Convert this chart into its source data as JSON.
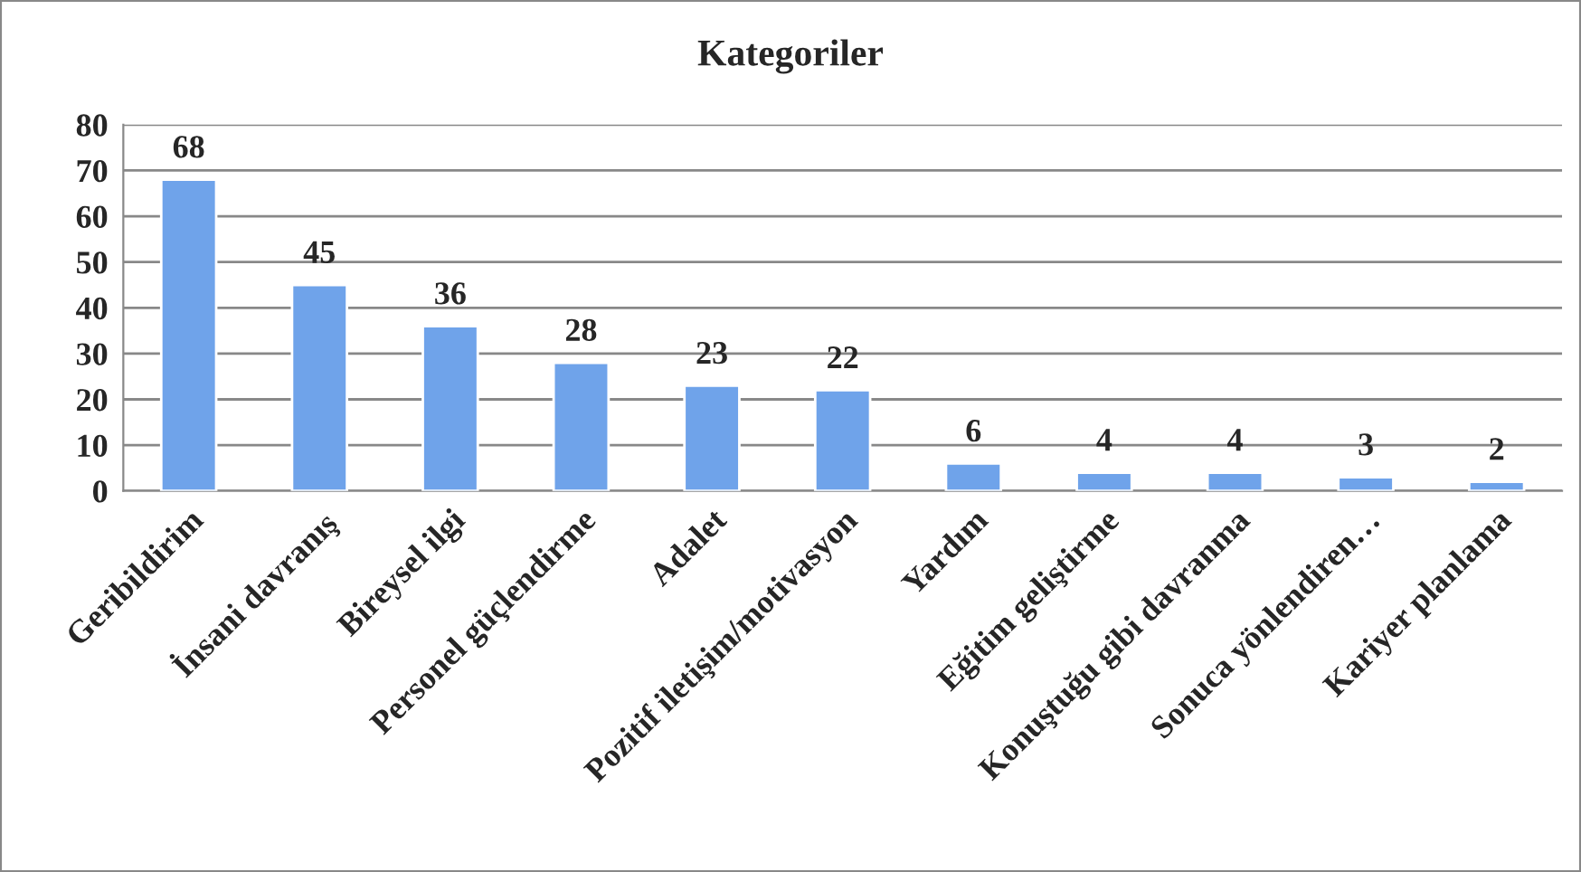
{
  "chart_data": {
    "type": "bar",
    "title": "Kategoriler",
    "categories": [
      "Geribildirim",
      "İnsani davranış",
      "Bireysel ilgi",
      "Personel güçlendirme",
      "Adalet",
      "Pozitif iletişim/motivasyon",
      "Yardım",
      "Eğitim geliştirme",
      "Konuştuğu gibi davranma",
      "Sonuca yönlendiren…",
      "Kariyer planlama"
    ],
    "values": [
      68,
      45,
      36,
      28,
      23,
      22,
      6,
      4,
      4,
      3,
      2
    ],
    "color": "#6fa3ea",
    "ylim": [
      0,
      80
    ],
    "yticks": [
      0,
      10,
      20,
      30,
      40,
      50,
      60,
      70,
      80
    ],
    "grid": "y",
    "data_labels": true,
    "legend": false
  }
}
